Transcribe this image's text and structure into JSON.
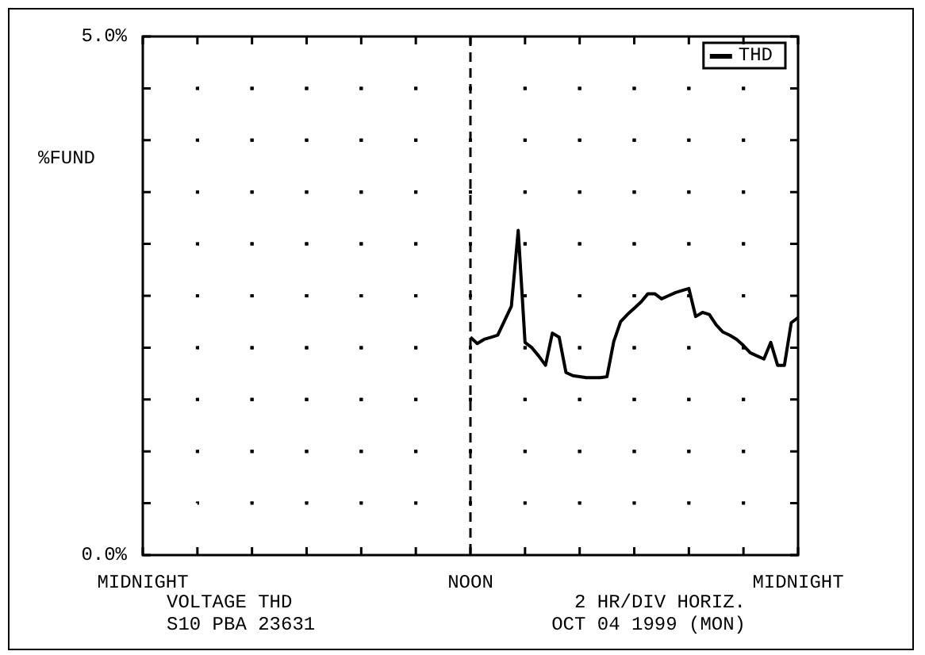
{
  "chart_data": {
    "type": "line",
    "ylabel": "%FUND",
    "legend": "top right",
    "grid": true,
    "line_style": "solid",
    "marker": "none",
    "categories": [
      "MIDNIGHT",
      null,
      null,
      null,
      null,
      null,
      null,
      null,
      null,
      null,
      null,
      null,
      null,
      null,
      null,
      null,
      null,
      null,
      null,
      null,
      null,
      null,
      null,
      null,
      null,
      null,
      null,
      null,
      null,
      null,
      null,
      null,
      null,
      null,
      null,
      null,
      null,
      null,
      null,
      null,
      null,
      null,
      null,
      null,
      null,
      null,
      null,
      null,
      "NOON",
      null,
      null,
      null,
      null,
      null,
      null,
      null,
      null,
      null,
      null,
      null,
      null,
      null,
      null,
      null,
      null,
      null,
      null,
      null,
      null,
      null,
      null,
      null,
      null,
      null,
      null,
      null,
      null,
      null,
      null,
      null,
      null,
      null,
      null,
      null,
      null,
      null,
      null,
      null,
      null,
      null,
      null,
      null,
      null,
      null,
      null,
      null,
      "MIDNIGHT"
    ],
    "ylim": [
      0,
      5
    ],
    "yticks": [
      {
        "value": 0,
        "label": "0.0%"
      },
      {
        "value": 0.5,
        "label": null
      },
      {
        "value": 1,
        "label": null
      },
      {
        "value": 1.5,
        "label": null
      },
      {
        "value": 2,
        "label": null
      },
      {
        "value": 2.5,
        "label": null
      },
      {
        "value": 3,
        "label": null
      },
      {
        "value": 3.5,
        "label": null
      },
      {
        "value": 4,
        "label": null
      },
      {
        "value": 4.5,
        "label": null
      },
      {
        "value": 5,
        "label": "5.0%"
      }
    ],
    "ref_lines": [
      {
        "axis": "x",
        "value": "NOON",
        "line_style": "dashed",
        "color": "#000000"
      }
    ],
    "annotations": [
      "VOLTAGE THD",
      "S10 PBA 23631",
      "2 HR/DIV HORIZ.",
      "OCT 04 1999 (MON)"
    ],
    "series": [
      {
        "name": "THD",
        "color": "#000000",
        "values": [
          null,
          null,
          null,
          null,
          null,
          null,
          null,
          null,
          null,
          null,
          null,
          null,
          null,
          null,
          null,
          null,
          null,
          null,
          null,
          null,
          null,
          null,
          null,
          null,
          null,
          null,
          null,
          null,
          null,
          null,
          null,
          null,
          null,
          null,
          null,
          null,
          null,
          null,
          null,
          null,
          null,
          null,
          null,
          null,
          null,
          null,
          null,
          null,
          2.1,
          2.04,
          2.08,
          2.1,
          2.12,
          2.26,
          2.4,
          3.13,
          2.05,
          2.0,
          1.92,
          1.83,
          2.14,
          2.1,
          1.76,
          1.73,
          1.72,
          1.71,
          1.71,
          1.71,
          1.72,
          2.06,
          2.25,
          2.32,
          2.38,
          2.44,
          2.52,
          2.52,
          2.47,
          2.5,
          2.53,
          2.55,
          2.57,
          2.3,
          2.34,
          2.32,
          2.22,
          2.15,
          2.12,
          2.08,
          2.02,
          1.95,
          1.92,
          1.89,
          2.05,
          1.83,
          1.83,
          2.24,
          2.29
        ]
      }
    ]
  }
}
